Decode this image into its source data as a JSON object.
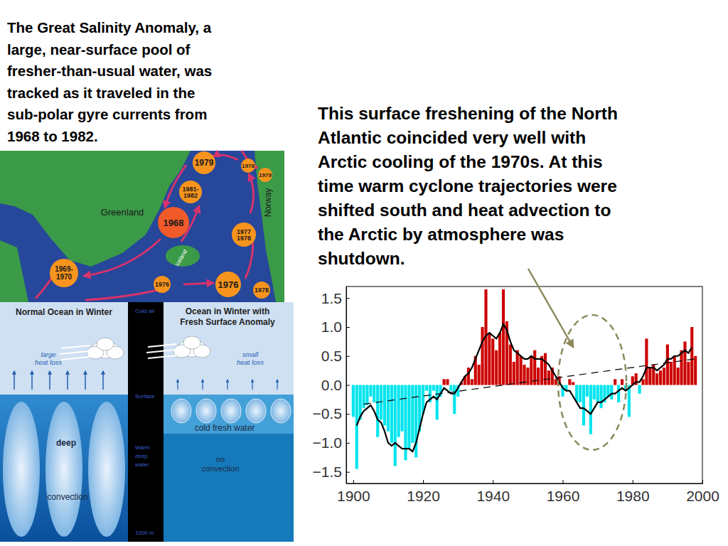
{
  "caption": [
    "The Great Salinity Anomaly, a",
    "large, near-surface pool of",
    "fresher-than-usual water, was",
    "tracked as it traveled in the",
    "sub-polar gyre currents from",
    "1968 to 1982."
  ],
  "map": {
    "places": [
      "Greenland",
      "Iceland",
      "Norway"
    ],
    "labels": [
      {
        "text": [
          "1979"
        ]
      },
      {
        "text": [
          "1978"
        ]
      },
      {
        "text": [
          "1979"
        ]
      },
      {
        "text": [
          "1981-",
          "1982"
        ]
      },
      {
        "text": [
          "1968"
        ]
      },
      {
        "text": [
          "1977",
          "1978"
        ]
      },
      {
        "text": [
          "1969-",
          "1970"
        ]
      },
      {
        "text": [
          "1976"
        ]
      },
      {
        "text": [
          "1976"
        ]
      },
      {
        "text": [
          "1978"
        ]
      }
    ]
  },
  "diagram": {
    "normal": {
      "title": [
        "Normal Ocean in Winter"
      ],
      "heat": [
        "large",
        "heat loss"
      ],
      "labels": [
        "deep",
        "convection"
      ]
    },
    "strip": [
      [
        "Cold air"
      ],
      [
        "Surface"
      ],
      [
        "Warm",
        "deep",
        "water"
      ],
      [
        "1000 m"
      ]
    ],
    "anomaly": {
      "title": [
        "Ocean in Winter with",
        "Fresh Surface Anomaly"
      ],
      "heat": [
        "small",
        "heat loss"
      ],
      "labels": [
        "cold fresh water",
        "no",
        "convection"
      ]
    }
  },
  "chart_data": {
    "type": "bar",
    "annotation": [
      "This surface freshening of the North",
      "Atlantic coincided very well with",
      "Arctic cooling of the 1970s. At this",
      "time warm cyclone trajectories were",
      "shifted south and heat advection to",
      "the Arctic by atmosphere was",
      "shutdown."
    ],
    "x": [
      1900,
      1901,
      1902,
      1903,
      1904,
      1905,
      1906,
      1907,
      1908,
      1909,
      1910,
      1911,
      1912,
      1913,
      1914,
      1915,
      1916,
      1917,
      1918,
      1919,
      1920,
      1921,
      1922,
      1923,
      1924,
      1925,
      1926,
      1927,
      1928,
      1929,
      1930,
      1931,
      1932,
      1933,
      1934,
      1935,
      1936,
      1937,
      1938,
      1939,
      1940,
      1941,
      1942,
      1943,
      1944,
      1945,
      1946,
      1947,
      1948,
      1949,
      1950,
      1951,
      1952,
      1953,
      1954,
      1955,
      1956,
      1957,
      1958,
      1959,
      1960,
      1961,
      1962,
      1963,
      1964,
      1965,
      1966,
      1967,
      1968,
      1969,
      1970,
      1971,
      1972,
      1973,
      1974,
      1975,
      1976,
      1977,
      1978,
      1979,
      1980,
      1981,
      1982,
      1983,
      1984,
      1985,
      1986,
      1987,
      1988,
      1989,
      1990,
      1991,
      1992,
      1993,
      1994,
      1995,
      1996,
      1997,
      1998
    ],
    "series": [
      {
        "type": "bar",
        "values": [
          -0.55,
          -1.45,
          -0.6,
          -0.4,
          -0.35,
          -0.2,
          -0.3,
          -0.9,
          -0.6,
          -0.7,
          -0.8,
          -1.0,
          -1.4,
          -0.9,
          -0.8,
          -1.3,
          -1.1,
          -1.0,
          -1.25,
          -0.8,
          -0.5,
          -0.1,
          -0.3,
          -0.1,
          -0.6,
          -0.2,
          0.1,
          0.1,
          -0.1,
          -0.5,
          -0.2,
          0.05,
          0.15,
          0.3,
          0.1,
          0.5,
          0.35,
          1.0,
          1.65,
          0.9,
          0.8,
          0.6,
          0.9,
          1.65,
          1.1,
          0.7,
          0.4,
          0.6,
          0.5,
          0.35,
          0.3,
          0.5,
          0.6,
          0.3,
          0.5,
          0.55,
          0.25,
          0.3,
          0.1,
          0.15,
          -0.2,
          -0.1,
          0.1,
          0.05,
          -0.3,
          -0.3,
          -0.7,
          -0.2,
          -0.85,
          -0.25,
          -0.3,
          -0.4,
          -0.3,
          -0.2,
          -0.25,
          0.1,
          -0.3,
          0.1,
          -0.1,
          -0.55,
          0.15,
          0.2,
          -0.15,
          0.1,
          0.8,
          0.3,
          0.35,
          0.2,
          0.25,
          0.3,
          0.7,
          0.4,
          0.5,
          0.3,
          0.6,
          0.75,
          0.4,
          1.0,
          0.5
        ],
        "colors": [
          "#00e5ee",
          "#00e5ee",
          "#00e5ee",
          "#00e5ee",
          "#00e5ee",
          "#00e5ee",
          "#00e5ee",
          "#00e5ee",
          "#00e5ee",
          "#00e5ee",
          "#00e5ee",
          "#00e5ee",
          "#00e5ee",
          "#00e5ee",
          "#00e5ee",
          "#00e5ee",
          "#00e5ee",
          "#00e5ee",
          "#00e5ee",
          "#00e5ee",
          "#00e5ee",
          "#00e5ee",
          "#00e5ee",
          "#00e5ee",
          "#00e5ee",
          "#00e5ee",
          "#cc0000",
          "#cc0000",
          "#00e5ee",
          "#00e5ee",
          "#00e5ee",
          "#cc0000",
          "#cc0000",
          "#cc0000",
          "#cc0000",
          "#cc0000",
          "#cc0000",
          "#cc0000",
          "#cc0000",
          "#cc0000",
          "#cc0000",
          "#cc0000",
          "#cc0000",
          "#cc0000",
          "#cc0000",
          "#cc0000",
          "#cc0000",
          "#cc0000",
          "#cc0000",
          "#cc0000",
          "#cc0000",
          "#cc0000",
          "#cc0000",
          "#cc0000",
          "#cc0000",
          "#cc0000",
          "#cc0000",
          "#cc0000",
          "#cc0000",
          "#cc0000",
          "#00e5ee",
          "#00e5ee",
          "#cc0000",
          "#cc0000",
          "#00e5ee",
          "#00e5ee",
          "#00e5ee",
          "#00e5ee",
          "#00e5ee",
          "#00e5ee",
          "#00e5ee",
          "#00e5ee",
          "#00e5ee",
          "#00e5ee",
          "#00e5ee",
          "#cc0000",
          "#00e5ee",
          "#cc0000",
          "#00e5ee",
          "#00e5ee",
          "#cc0000",
          "#cc0000",
          "#00e5ee",
          "#cc0000",
          "#cc0000",
          "#cc0000",
          "#cc0000",
          "#cc0000",
          "#cc0000",
          "#cc0000",
          "#cc0000",
          "#cc0000",
          "#cc0000",
          "#cc0000",
          "#cc0000",
          "#cc0000",
          "#cc0000",
          "#cc0000",
          "#cc0000"
        ]
      },
      {
        "type": "line",
        "color": "#000000",
        "line_style": "solid",
        "values": [
          null,
          -0.7,
          -0.55,
          -0.45,
          -0.4,
          -0.35,
          -0.45,
          -0.6,
          -0.65,
          -0.8,
          -1.0,
          -1.05,
          -1.0,
          -1.05,
          -1.1,
          -1.1,
          -1.1,
          -1.15,
          -1.0,
          -0.75,
          -0.5,
          -0.3,
          -0.25,
          -0.2,
          -0.25,
          -0.15,
          -0.05,
          -0.1,
          -0.15,
          -0.15,
          -0.05,
          0.05,
          0.15,
          0.2,
          0.3,
          0.45,
          0.6,
          0.75,
          0.85,
          0.9,
          0.85,
          0.8,
          0.9,
          1.05,
          0.95,
          0.75,
          0.6,
          0.55,
          0.5,
          0.45,
          0.45,
          0.5,
          0.45,
          0.45,
          0.45,
          0.4,
          0.35,
          0.25,
          0.15,
          0.05,
          -0.05,
          -0.1,
          -0.1,
          -0.2,
          -0.3,
          -0.4,
          -0.4,
          -0.45,
          -0.5,
          -0.4,
          -0.3,
          -0.3,
          -0.25,
          -0.2,
          -0.15,
          -0.15,
          -0.1,
          -0.05,
          -0.1,
          -0.05,
          0,
          0.05,
          0.05,
          0.15,
          0.3,
          0.3,
          0.3,
          0.25,
          0.3,
          0.35,
          0.45,
          0.45,
          0.5,
          0.5,
          0.55,
          0.6,
          0.55,
          0.65,
          null
        ]
      },
      {
        "type": "line",
        "color": "#000000",
        "line_style": "dashed",
        "x": [
          1903,
          1998
        ],
        "values": [
          -0.33,
          0.45
        ]
      }
    ],
    "xlim": [
      1898,
      2000
    ],
    "xticks": [
      1900,
      1920,
      1940,
      1960,
      1980,
      2000
    ],
    "ylim": [
      -1.7,
      1.7
    ],
    "yticks": [
      {
        "value": -1.5,
        "label": "−1.5"
      },
      {
        "value": -1,
        "label": "−1.0"
      },
      {
        "value": -0.5,
        "label": "−0.5"
      },
      {
        "value": 0,
        "label": "0.0"
      },
      {
        "value": 0.5,
        "label": "0.5"
      },
      {
        "value": 1,
        "label": "1.0"
      },
      {
        "value": 1.5,
        "label": "1.5"
      }
    ],
    "grid": false
  }
}
